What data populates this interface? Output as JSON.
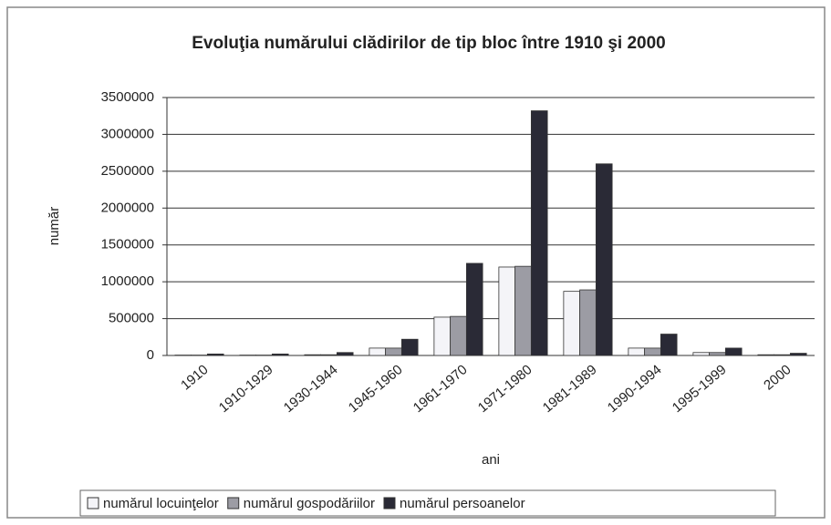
{
  "chart_data": {
    "type": "bar",
    "title": "Evoluţia numărului clădirilor de tip bloc între 1910 şi 2000",
    "x_label": "ani",
    "y_label": "număr",
    "categories": [
      "1910",
      "1910-1929",
      "1930-1944",
      "1945-1960",
      "1961-1970",
      "1971-1980",
      "1981-1989",
      "1990-1994",
      "1995-1999",
      "2000"
    ],
    "series": [
      {
        "name": "numărul locuinţelor",
        "color": "#f4f4f8",
        "values": [
          5000,
          5000,
          10000,
          100000,
          520000,
          1200000,
          870000,
          100000,
          40000,
          10000
        ]
      },
      {
        "name": "numărul gospodăriilor",
        "color": "#9c9ca4",
        "values": [
          5000,
          5000,
          10000,
          100000,
          530000,
          1210000,
          890000,
          100000,
          40000,
          10000
        ]
      },
      {
        "name": "numărul persoanelor",
        "color": "#2a2a36",
        "values": [
          20000,
          20000,
          40000,
          220000,
          1250000,
          3320000,
          2600000,
          290000,
          100000,
          30000
        ]
      }
    ],
    "ylim": [
      0,
      3500000
    ],
    "yticks": [
      0,
      500000,
      1000000,
      1500000,
      2000000,
      2500000,
      3000000,
      3500000
    ],
    "grid": true,
    "legend": "bottom"
  }
}
